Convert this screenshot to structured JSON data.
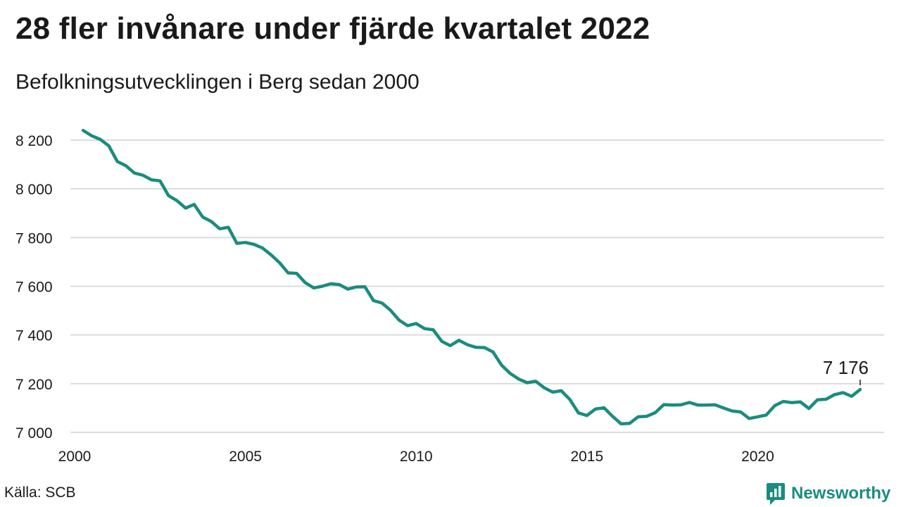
{
  "header": {
    "title": "28 fler invånare under fjärde kvartalet 2022",
    "subtitle": "Befolkningsutvecklingen i Berg sedan 2000"
  },
  "footer": {
    "source": "Källa: SCB",
    "brand": "Newsworthy",
    "brand_icon": "newsworthy-logo-icon"
  },
  "colors": {
    "line": "#1a8c7e",
    "grid": "#dcdcdc",
    "brand": "#1a8c7e"
  },
  "chart_data": {
    "type": "line",
    "title": "28 fler invånare under fjärde kvartalet 2022",
    "subtitle": "Befolkningsutvecklingen i Berg sedan 2000",
    "xlabel": "",
    "ylabel": "",
    "x_ticks": [
      2000,
      2005,
      2010,
      2015,
      2020
    ],
    "y_ticks": [
      7000,
      7200,
      7400,
      7600,
      7800,
      8000,
      8200
    ],
    "y_tick_labels": [
      "7 000",
      "7 200",
      "7 400",
      "7 600",
      "7 800",
      "8 000",
      "8 200"
    ],
    "x_tick_labels": [
      "2000",
      "2005",
      "2010",
      "2015",
      "2020"
    ],
    "xlim": [
      2000,
      2023
    ],
    "ylim": [
      7000,
      8240
    ],
    "grid": "horizontal",
    "end_label": "7 176",
    "series": [
      {
        "x": [
          2000.25,
          2000.5,
          2000.75,
          2001.0,
          2001.25,
          2001.5,
          2001.75,
          2002.0,
          2002.25,
          2002.5,
          2002.75,
          2003.0,
          2003.25,
          2003.5,
          2003.75,
          2004.0,
          2004.25,
          2004.5,
          2004.75,
          2005.0,
          2005.25,
          2005.5,
          2005.75,
          2006.0,
          2006.25,
          2006.5,
          2006.75,
          2007.0,
          2007.25,
          2007.5,
          2007.75,
          2008.0,
          2008.25,
          2008.5,
          2008.75,
          2009.0,
          2009.25,
          2009.5,
          2009.75,
          2010.0,
          2010.25,
          2010.5,
          2010.75,
          2011.0,
          2011.25,
          2011.5,
          2011.75,
          2012.0,
          2012.25,
          2012.5,
          2012.75,
          2013.0,
          2013.25,
          2013.5,
          2013.75,
          2014.0,
          2014.25,
          2014.5,
          2014.75,
          2015.0,
          2015.25,
          2015.5,
          2015.75,
          2016.0,
          2016.25,
          2016.5,
          2016.75,
          2017.0,
          2017.25,
          2017.5,
          2017.75,
          2018.0,
          2018.25,
          2018.5,
          2018.75,
          2019.0,
          2019.25,
          2019.5,
          2019.75,
          2020.0,
          2020.25,
          2020.5,
          2020.75,
          2021.0,
          2021.25,
          2021.5,
          2021.75,
          2022.0,
          2022.25,
          2022.5,
          2022.75,
          2023.0
        ],
        "values": [
          8240,
          8218,
          8203,
          8177,
          8112,
          8095,
          8065,
          8056,
          8037,
          8033,
          7972,
          7951,
          7921,
          7936,
          7884,
          7866,
          7836,
          7842,
          7776,
          7780,
          7772,
          7757,
          7729,
          7697,
          7655,
          7653,
          7615,
          7593,
          7600,
          7610,
          7607,
          7588,
          7597,
          7598,
          7541,
          7531,
          7501,
          7461,
          7438,
          7447,
          7426,
          7421,
          7374,
          7356,
          7378,
          7360,
          7349,
          7348,
          7330,
          7276,
          7242,
          7219,
          7204,
          7210,
          7183,
          7165,
          7171,
          7135,
          7080,
          7069,
          7096,
          7101,
          7066,
          7035,
          7037,
          7064,
          7066,
          7081,
          7114,
          7112,
          7113,
          7123,
          7112,
          7112,
          7113,
          7100,
          7088,
          7084,
          7057,
          7064,
          7071,
          7110,
          7127,
          7122,
          7125,
          7098,
          7134,
          7136,
          7155,
          7163,
          7148,
          7176
        ]
      }
    ]
  }
}
